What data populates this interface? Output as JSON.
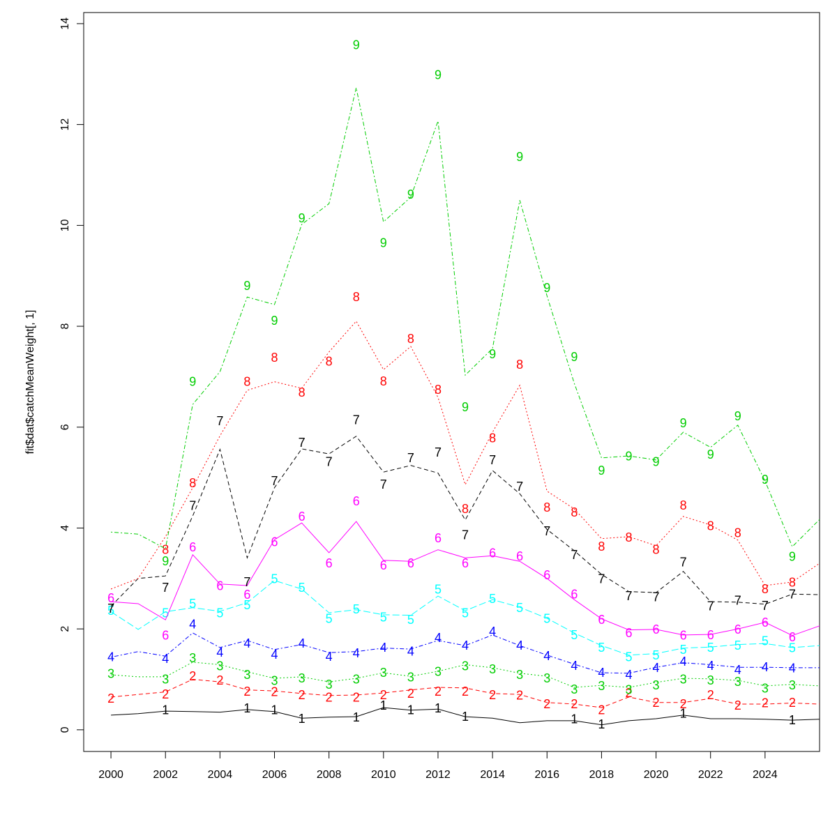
{
  "chart_data": {
    "type": "line",
    "y_label": "fit$dat$catchMeanWeight[, 1]",
    "x": [
      2000,
      2001,
      2002,
      2003,
      2004,
      2005,
      2006,
      2007,
      2008,
      2009,
      2010,
      2011,
      2012,
      2013,
      2014,
      2015,
      2016,
      2017,
      2018,
      2019,
      2020,
      2021,
      2022,
      2023,
      2024,
      2025,
      2026
    ],
    "xlim": [
      1999,
      2026
    ],
    "xticks": [
      2000,
      2002,
      2004,
      2006,
      2008,
      2010,
      2012,
      2014,
      2016,
      2018,
      2020,
      2022,
      2024
    ],
    "ylim": [
      -0.43,
      14.22
    ],
    "yticks": [
      0,
      2,
      4,
      6,
      8,
      10,
      12,
      14
    ],
    "series": [
      {
        "name": "1",
        "color": "#000000",
        "dash": "none",
        "values": [
          0.29,
          0.32,
          0.37,
          0.36,
          0.35,
          0.4,
          0.36,
          0.23,
          0.25,
          0.26,
          0.44,
          0.39,
          0.41,
          0.26,
          0.23,
          0.14,
          0.18,
          0.18,
          0.1,
          0.18,
          0.22,
          0.29,
          0.22,
          0.22,
          0.21,
          0.19,
          0.21
        ],
        "obs": [
          null,
          null,
          0.39,
          null,
          null,
          0.43,
          0.39,
          0.22,
          null,
          0.25,
          0.48,
          0.39,
          0.43,
          0.26,
          null,
          null,
          null,
          0.21,
          0.11,
          null,
          null,
          0.32,
          null,
          null,
          null,
          0.19
        ]
      },
      {
        "name": "2",
        "color": "#ff0000",
        "dash": "6,4",
        "values": [
          0.65,
          0.7,
          0.75,
          1.0,
          0.95,
          0.79,
          0.77,
          0.72,
          0.68,
          0.69,
          0.73,
          0.79,
          0.84,
          0.83,
          0.72,
          0.7,
          0.54,
          0.51,
          0.44,
          0.65,
          0.54,
          0.54,
          0.62,
          0.51,
          0.51,
          0.53,
          0.51
        ],
        "obs": [
          0.62,
          null,
          0.7,
          1.06,
          0.98,
          0.76,
          0.75,
          0.69,
          0.64,
          0.64,
          0.69,
          0.72,
          0.76,
          0.76,
          0.69,
          0.68,
          0.51,
          0.51,
          0.39,
          0.73,
          0.54,
          0.51,
          0.69,
          0.48,
          0.53,
          0.54
        ]
      },
      {
        "name": "3",
        "color": "#00cd00",
        "dash": "2,3",
        "values": [
          1.09,
          1.05,
          1.05,
          1.34,
          1.29,
          1.15,
          1.02,
          1.05,
          0.95,
          1.02,
          1.13,
          1.06,
          1.16,
          1.29,
          1.23,
          1.12,
          1.06,
          0.84,
          0.88,
          0.84,
          0.94,
          1.02,
          1.01,
          0.98,
          0.87,
          0.9,
          0.87
        ],
        "obs": [
          1.11,
          null,
          1.0,
          1.42,
          1.26,
          1.09,
          0.97,
          1.02,
          0.9,
          1.0,
          1.13,
          1.04,
          1.15,
          1.26,
          1.2,
          1.09,
          1.02,
          0.8,
          0.87,
          0.79,
          0.88,
          1.0,
          0.98,
          0.95,
          0.82,
          0.88
        ]
      },
      {
        "name": "4",
        "color": "#0000ff",
        "dash": "2,3,6,3",
        "values": [
          1.44,
          1.55,
          1.46,
          1.92,
          1.63,
          1.77,
          1.59,
          1.69,
          1.53,
          1.55,
          1.62,
          1.6,
          1.77,
          1.67,
          1.88,
          1.67,
          1.48,
          1.3,
          1.13,
          1.12,
          1.24,
          1.33,
          1.29,
          1.24,
          1.24,
          1.23,
          1.23
        ],
        "obs": [
          1.44,
          null,
          1.41,
          2.09,
          1.53,
          1.71,
          1.49,
          1.71,
          1.45,
          1.52,
          1.63,
          1.55,
          1.82,
          1.67,
          1.95,
          1.67,
          1.46,
          1.27,
          1.13,
          1.09,
          1.23,
          1.35,
          1.27,
          1.19,
          1.24,
          1.22
        ]
      },
      {
        "name": "5",
        "color": "#00ffff",
        "dash": "10,4",
        "values": [
          2.34,
          1.99,
          2.34,
          2.42,
          2.35,
          2.52,
          2.96,
          2.79,
          2.32,
          2.38,
          2.28,
          2.27,
          2.65,
          2.36,
          2.58,
          2.43,
          2.21,
          1.92,
          1.67,
          1.48,
          1.51,
          1.62,
          1.64,
          1.69,
          1.71,
          1.63,
          1.67
        ],
        "obs": [
          2.36,
          null,
          2.31,
          2.5,
          2.31,
          2.47,
          2.99,
          2.82,
          2.2,
          2.39,
          2.23,
          2.18,
          2.78,
          2.31,
          2.6,
          2.42,
          2.2,
          1.88,
          1.63,
          1.44,
          1.48,
          1.59,
          1.63,
          1.67,
          1.76,
          1.62
        ]
      },
      {
        "name": "6",
        "color": "#ff00ff",
        "dash": "none",
        "values": [
          2.54,
          2.5,
          2.18,
          3.47,
          2.89,
          2.86,
          3.77,
          4.1,
          3.51,
          4.13,
          3.36,
          3.34,
          3.57,
          3.41,
          3.45,
          3.34,
          3.0,
          2.58,
          2.2,
          1.98,
          1.99,
          1.88,
          1.89,
          2.0,
          2.13,
          1.87,
          2.06
        ],
        "obs": [
          2.61,
          null,
          1.87,
          3.62,
          2.85,
          2.68,
          3.72,
          4.23,
          3.3,
          4.53,
          3.26,
          3.3,
          3.8,
          3.3,
          3.5,
          3.44,
          3.07,
          2.69,
          2.18,
          1.92,
          1.99,
          1.87,
          1.88,
          1.99,
          2.13,
          1.84
        ]
      },
      {
        "name": "7",
        "color": "#000000",
        "dash": "6,4",
        "values": [
          2.45,
          3.0,
          3.05,
          4.24,
          5.56,
          3.41,
          4.8,
          5.57,
          5.47,
          5.82,
          5.11,
          5.24,
          5.09,
          4.16,
          5.14,
          4.68,
          3.97,
          3.55,
          3.08,
          2.74,
          2.72,
          3.14,
          2.54,
          2.53,
          2.49,
          2.69,
          2.68
        ],
        "obs": [
          2.4,
          null,
          2.82,
          4.44,
          6.12,
          2.93,
          4.93,
          5.69,
          5.31,
          6.14,
          4.86,
          5.39,
          5.5,
          3.86,
          5.35,
          4.82,
          3.94,
          3.47,
          2.99,
          2.65,
          2.63,
          3.32,
          2.45,
          2.56,
          2.46,
          2.69
        ]
      },
      {
        "name": "8",
        "color": "#ff0000",
        "dash": "2,3",
        "values": [
          2.79,
          3.0,
          3.83,
          4.8,
          5.83,
          6.73,
          6.9,
          6.77,
          7.49,
          8.1,
          7.14,
          7.6,
          6.59,
          4.86,
          5.9,
          6.83,
          4.73,
          4.38,
          3.79,
          3.83,
          3.65,
          4.23,
          4.06,
          3.76,
          2.86,
          2.93,
          3.3
        ],
        "obs": [
          null,
          null,
          3.57,
          4.89,
          null,
          6.9,
          7.38,
          6.69,
          7.3,
          8.58,
          6.91,
          7.75,
          6.74,
          4.38,
          5.78,
          7.24,
          4.41,
          4.31,
          3.63,
          3.81,
          3.57,
          4.45,
          4.04,
          3.9,
          2.79,
          2.92
        ]
      },
      {
        "name": "9",
        "color": "#00cd00",
        "dash": "2,3,6,3",
        "values": [
          3.92,
          3.88,
          3.59,
          6.45,
          7.1,
          8.58,
          8.43,
          10.02,
          10.43,
          12.73,
          10.07,
          10.56,
          12.07,
          7.03,
          7.56,
          10.5,
          8.6,
          6.87,
          5.39,
          5.43,
          5.35,
          5.9,
          5.6,
          6.04,
          4.93,
          3.63,
          4.17
        ],
        "obs": [
          null,
          null,
          3.34,
          6.9,
          null,
          8.8,
          8.11,
          10.14,
          null,
          13.58,
          9.65,
          10.61,
          12.98,
          6.4,
          7.45,
          11.36,
          8.76,
          7.39,
          5.14,
          5.42,
          5.31,
          6.08,
          5.46,
          6.22,
          4.96,
          3.43
        ]
      }
    ]
  }
}
